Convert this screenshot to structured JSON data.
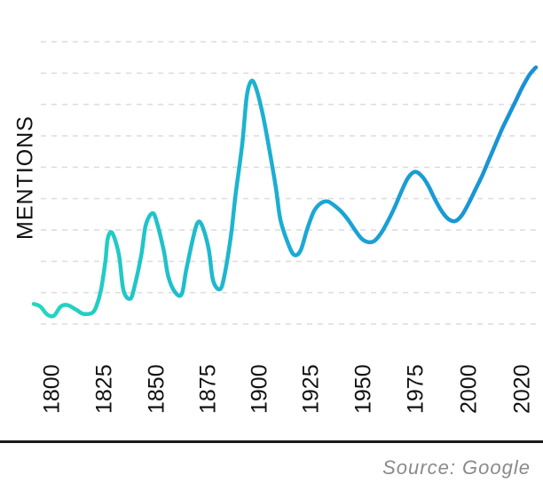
{
  "chart_data": {
    "type": "line",
    "title": "",
    "xlabel": "",
    "ylabel": "MENTIONS",
    "x_ticks": [
      "1800",
      "1825",
      "1850",
      "1875",
      "1900",
      "1925",
      "1950",
      "1975",
      "2000",
      "2020"
    ],
    "xlim": [
      1800,
      2024
    ],
    "y_ticks_shown": false,
    "gridlines": 10,
    "grid": true,
    "line_gradient": [
      "#24d8c0",
      "#1aa8d4",
      "#1a8fd6"
    ],
    "series": [
      {
        "x": [
          1800,
          1803,
          1806,
          1809,
          1812,
          1815,
          1819,
          1822,
          1826,
          1828,
          1830,
          1832,
          1833,
          1835,
          1838,
          1840,
          1843,
          1845,
          1848,
          1850,
          1853,
          1855,
          1858,
          1860,
          1863,
          1866,
          1868,
          1871,
          1873,
          1875,
          1878,
          1880,
          1883,
          1885,
          1888,
          1890,
          1893,
          1895,
          1897,
          1899,
          1902,
          1905,
          1908,
          1910,
          1913,
          1916,
          1919,
          1922,
          1925,
          1928,
          1931,
          1934,
          1937,
          1940,
          1943,
          1946,
          1949,
          1952,
          1955,
          1958,
          1961,
          1964,
          1967,
          1970,
          1973,
          1976,
          1979,
          1982,
          1985,
          1988,
          1991,
          1994,
          1997,
          2000,
          2003,
          2006,
          2009,
          2012,
          2015,
          2018,
          2021,
          2024
        ],
        "values": [
          0.85,
          0.78,
          0.58,
          0.55,
          0.78,
          0.82,
          0.7,
          0.6,
          0.62,
          0.8,
          1.2,
          1.95,
          2.5,
          2.65,
          2.1,
          1.2,
          0.98,
          1.3,
          2.1,
          2.85,
          3.15,
          2.9,
          2.2,
          1.55,
          1.15,
          1.1,
          1.7,
          2.5,
          2.9,
          2.85,
          2.25,
          1.45,
          1.22,
          1.55,
          2.6,
          3.6,
          4.9,
          6.1,
          6.5,
          6.35,
          5.7,
          4.8,
          3.8,
          3.0,
          2.45,
          2.1,
          2.2,
          2.75,
          3.2,
          3.4,
          3.45,
          3.35,
          3.2,
          3.0,
          2.75,
          2.52,
          2.42,
          2.45,
          2.65,
          2.95,
          3.3,
          3.7,
          4.05,
          4.2,
          4.1,
          3.85,
          3.5,
          3.2,
          3.0,
          2.95,
          3.1,
          3.4,
          3.75,
          4.1,
          4.5,
          4.9,
          5.3,
          5.65,
          6.0,
          6.35,
          6.65,
          6.85
        ]
      }
    ]
  },
  "source_text": "Source: Google"
}
